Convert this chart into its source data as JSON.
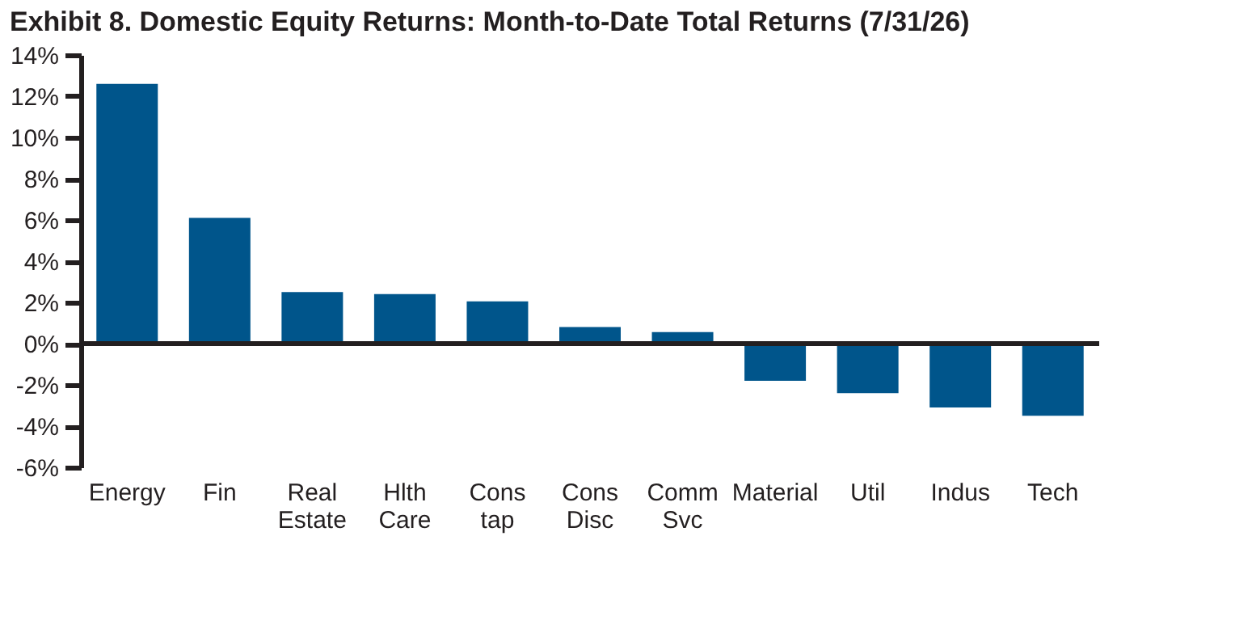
{
  "chart_data": {
    "type": "bar",
    "title": "Exhibit 8. Domestic Equity Returns: Month-to-Date Total Returns (7/31/26)",
    "categories": [
      "Energy",
      "Fin",
      "Real Estate",
      "Hlth Care",
      "Cons tap",
      "Cons Disc",
      "Comm Svc",
      "Material",
      "Util",
      "Indus",
      "Tech"
    ],
    "values": [
      12.6,
      6.1,
      2.5,
      2.4,
      2.05,
      0.8,
      0.56,
      -1.8,
      -2.4,
      -3.1,
      -3.5
    ],
    "color": "#00558b",
    "ylim": [
      -6,
      14
    ],
    "yticks": [
      {
        "value": -6,
        "label": "-6%"
      },
      {
        "value": -4,
        "label": "-4%"
      },
      {
        "value": -2,
        "label": "-2%"
      },
      {
        "value": 0,
        "label": "0%"
      },
      {
        "value": 2,
        "label": "2%"
      },
      {
        "value": 4,
        "label": "4%"
      },
      {
        "value": 6,
        "label": "6%"
      },
      {
        "value": 8,
        "label": "8%"
      },
      {
        "value": 10,
        "label": "10%"
      },
      {
        "value": 12,
        "label": "12%"
      },
      {
        "value": 14,
        "label": "14%"
      }
    ],
    "ref_lines": [
      {
        "axis": "y",
        "value": 0,
        "label": null,
        "color": "#231f20"
      }
    ],
    "grid": false
  }
}
